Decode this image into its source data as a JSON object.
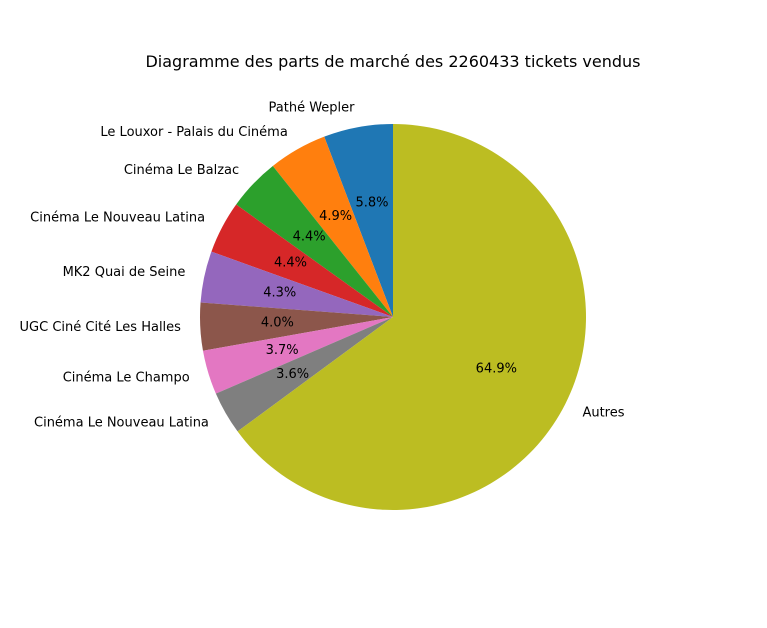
{
  "chart_data": {
    "type": "pie",
    "title": "Diagramme des parts de marché des 2260433 tickets vendus",
    "start_angle_deg": 90,
    "direction": "counterclockwise",
    "slices": [
      {
        "label": "Pathé Wepler",
        "pct_text": "5.8%",
        "value": 5.8,
        "color": "#1f77b4"
      },
      {
        "label": "Le Louxor - Palais du Cinéma",
        "pct_text": "4.9%",
        "value": 4.9,
        "color": "#ff7f0e"
      },
      {
        "label": "Cinéma Le Balzac",
        "pct_text": "4.4%",
        "value": 4.4,
        "color": "#2ca02c"
      },
      {
        "label": "Cinéma Le Nouveau Latina",
        "pct_text": "4.4%",
        "value": 4.4,
        "color": "#d62728"
      },
      {
        "label": "MK2 Quai de Seine",
        "pct_text": "4.3%",
        "value": 4.3,
        "color": "#9467bd"
      },
      {
        "label": "UGC Ciné Cité Les Halles",
        "pct_text": "4.0%",
        "value": 4.0,
        "color": "#8c564b"
      },
      {
        "label": "Cinéma Le Champo",
        "pct_text": "3.7%",
        "value": 3.7,
        "color": "#e377c2"
      },
      {
        "label": "Cinéma Le Nouveau Latina",
        "pct_text": "3.6%",
        "value": 3.6,
        "color": "#7f7f7f"
      },
      {
        "label": "Autres",
        "pct_text": "64.9%",
        "value": 64.9,
        "color": "#bcbd22"
      }
    ]
  }
}
